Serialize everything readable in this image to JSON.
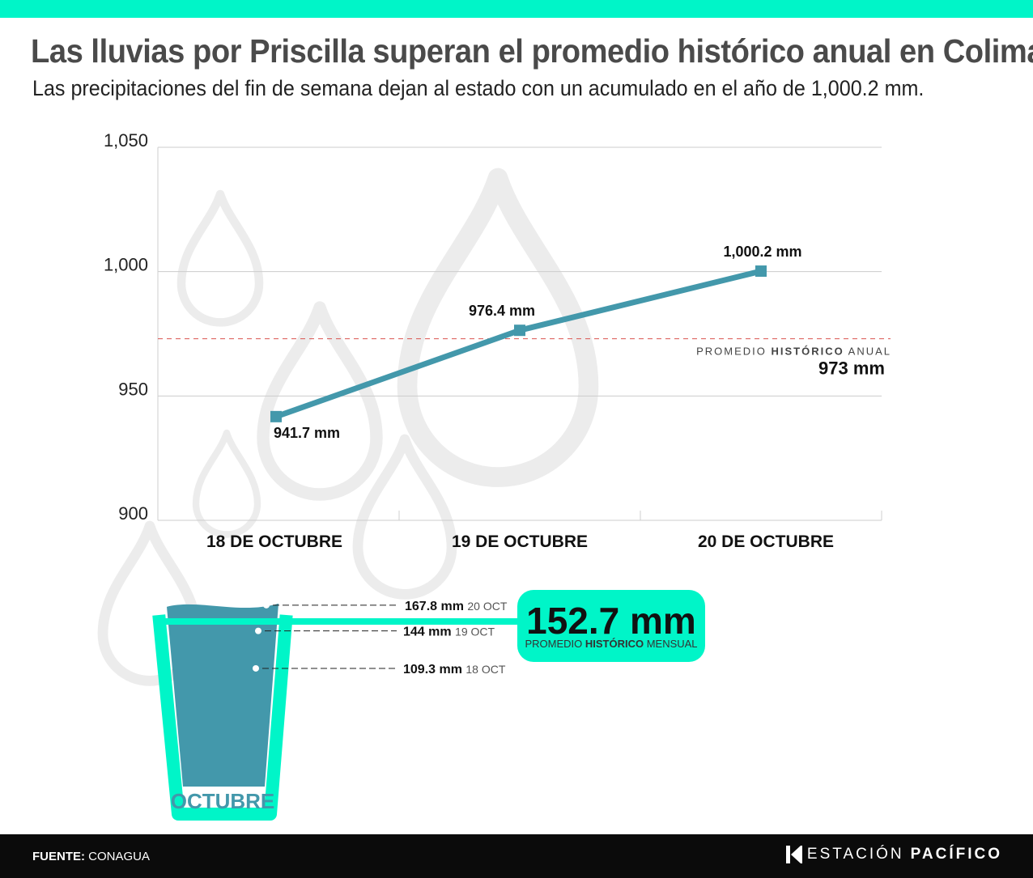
{
  "title": "Las lluvias por Priscilla superan el promedio histórico anual en Colima",
  "subtitle": "Las precipitaciones del fin de semana dejan al estado con un acumulado en el año de 1,000.2 mm.",
  "chart_data": [
    {
      "type": "line",
      "categories": [
        "18 DE OCTUBRE",
        "19 DE OCTUBRE",
        "20 DE OCTUBRE"
      ],
      "series": [
        {
          "values": [
            941.7,
            976.4,
            1000.2
          ],
          "labels": [
            "941.7 mm",
            "976.4 mm",
            "1,000.2 mm"
          ]
        }
      ],
      "ylim": [
        900,
        1050
      ],
      "yticks": [
        900,
        950,
        1000,
        1050
      ],
      "ytick_labels": [
        "900",
        "950",
        "1,000",
        "1,050"
      ],
      "reference_line": {
        "value": 973,
        "label_pre": "PROMEDIO ",
        "label_bold": "HISTÓRICO",
        "label_post": " ANUAL",
        "value_label": "973 mm"
      },
      "grid": true,
      "colors": {
        "line": "#4398ab",
        "reference": "#d9534f",
        "grid": "#cccccc"
      }
    },
    {
      "type": "bar",
      "category": "OCTUBRE",
      "levels": [
        {
          "value": 109.3,
          "value_label": "109.3 mm",
          "date_label": "18 OCT"
        },
        {
          "value": 144,
          "value_label": "144 mm",
          "date_label": "19 OCT"
        },
        {
          "value": 167.8,
          "value_label": "167.8 mm",
          "date_label": "20 OCT"
        }
      ],
      "reference": {
        "value": 152.7,
        "value_label": "152.7 mm",
        "label_pre": "PROMEDIO ",
        "label_bold": "HISTÓRICO",
        "label_post": " MENSUAL"
      },
      "colors": {
        "water": "#4398ab",
        "glass": "#00f5c8"
      }
    }
  ],
  "footer": {
    "source_label": "FUENTE:",
    "source_value": "CONAGUA",
    "brand_light": "ESTACIÓN",
    "brand_bold": "PACÍFICO"
  },
  "colors": {
    "accent": "#00f5c8",
    "footer_bg": "#0b0b0b"
  }
}
